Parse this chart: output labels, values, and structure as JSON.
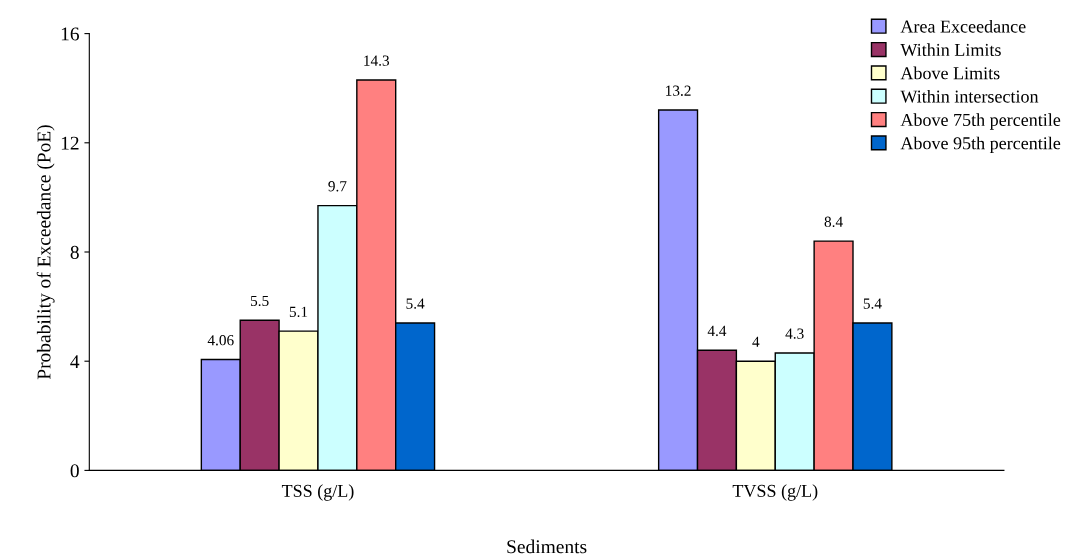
{
  "chart_data": {
    "type": "bar",
    "xlabel": "Sediments",
    "ylabel": "Probability of Exceedance (PoE)",
    "categories": [
      "TSS (g/L)",
      "TVSS (g/L)"
    ],
    "series": [
      {
        "name": "Area Exceedance",
        "color": "#9999ff",
        "values": [
          4.06,
          13.2
        ]
      },
      {
        "name": "Within Limits",
        "color": "#993366",
        "values": [
          5.5,
          4.4
        ]
      },
      {
        "name": "Above Limits",
        "color": "#ffffcc",
        "values": [
          5.1,
          4
        ]
      },
      {
        "name": "Within intersection",
        "color": "#ccffff",
        "values": [
          9.7,
          4.3
        ]
      },
      {
        "name": "Above 75th percentile",
        "color": "#ff8080",
        "values": [
          14.3,
          8.4
        ]
      },
      {
        "name": "Above 95th percentile",
        "color": "#0066cc",
        "values": [
          5.4,
          5.4
        ]
      }
    ],
    "ylim": [
      0,
      16
    ],
    "yticks": [
      0,
      4,
      8,
      12,
      16
    ],
    "grid": false,
    "legend": "top right",
    "data_labels": true
  }
}
